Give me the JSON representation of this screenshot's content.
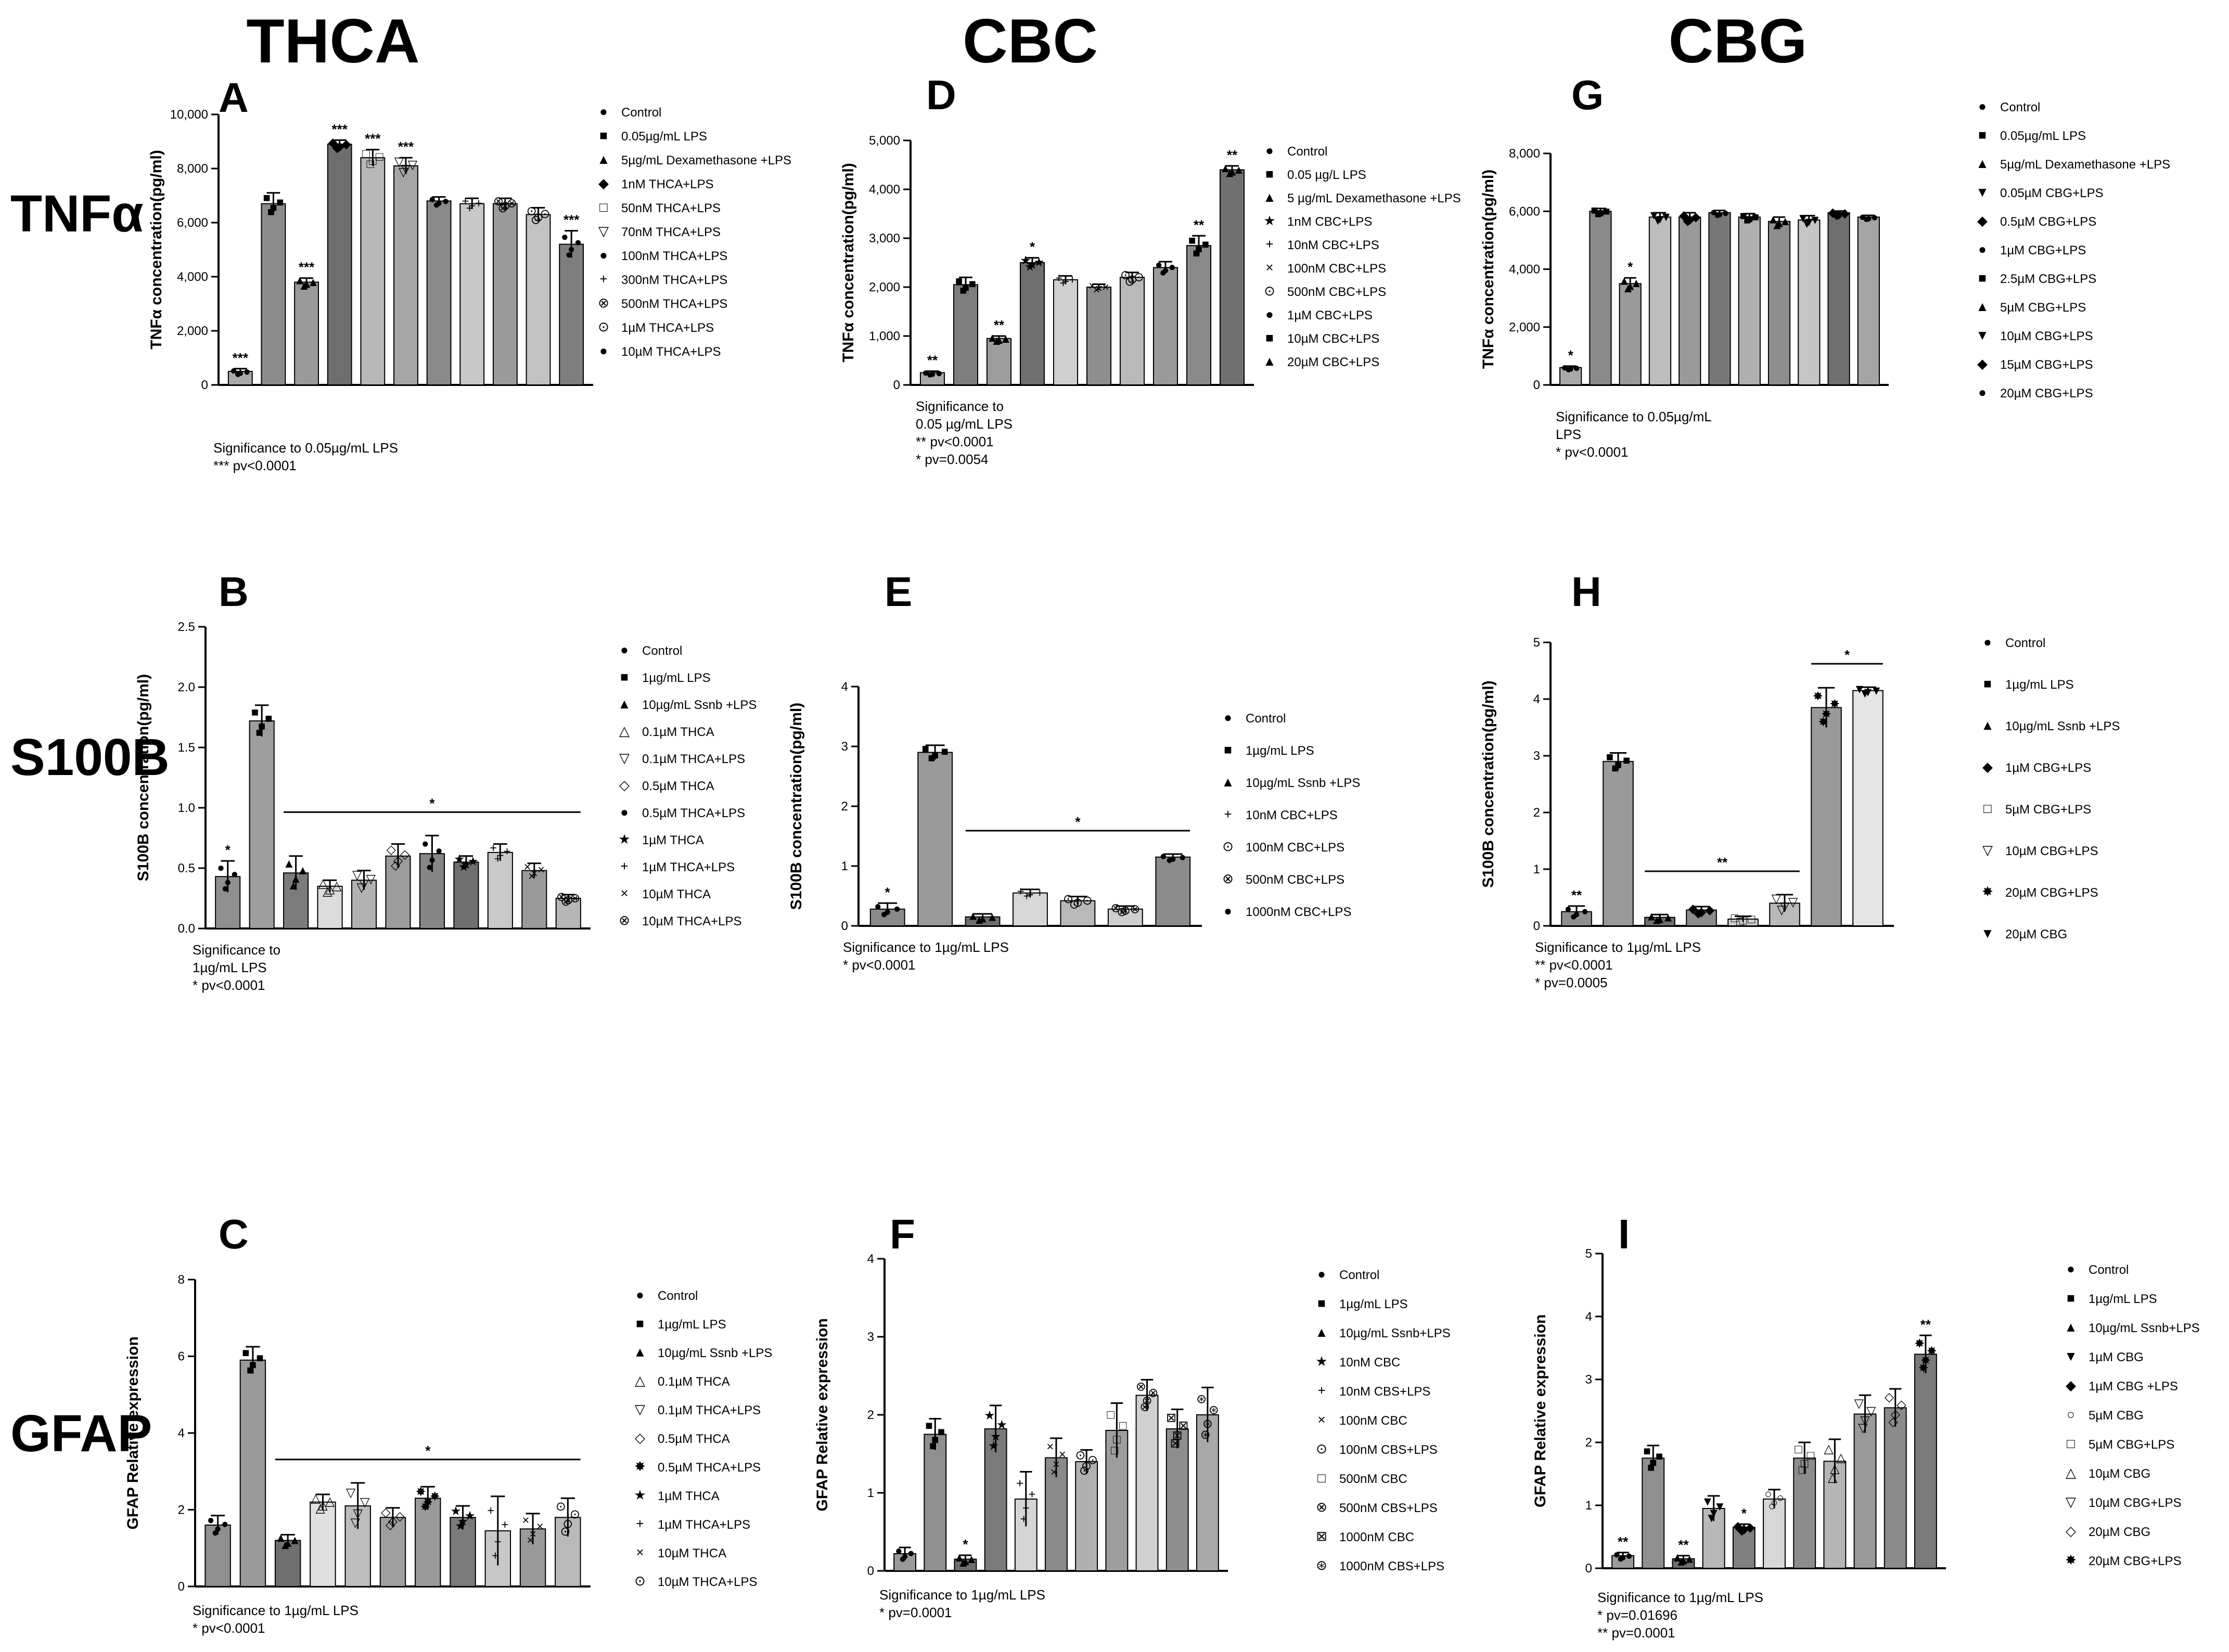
{
  "figure": {
    "columns": [
      "THCA",
      "CBC",
      "CBG"
    ],
    "rows": [
      "TNFα",
      "S100B",
      "GFAP"
    ]
  },
  "chart_data": [
    {
      "panel": "A",
      "type": "bar",
      "ylabel": "TNFα concentration(pg/ml)",
      "ylim": [
        0,
        10000
      ],
      "yticks": [
        "0",
        "2,000",
        "4,000",
        "6,000",
        "8,000",
        "10,000"
      ],
      "categories": [
        "Control",
        "0.05µg/mL LPS",
        "5µg/mL Dexamethasone +LPS",
        "1nM THCA+LPS",
        "50nM THCA+LPS",
        "70nM THCA+LPS",
        "100nM THCA+LPS",
        "300nM THCA+LPS",
        "500nM THCA+LPS",
        "1µM THCA+LPS",
        "10µM THCA+LPS"
      ],
      "values": [
        500,
        6700,
        3800,
        8900,
        8400,
        8100,
        6800,
        6700,
        6700,
        6300,
        5200
      ],
      "errors": [
        100,
        400,
        150,
        150,
        300,
        300,
        150,
        200,
        200,
        250,
        500
      ],
      "markers": [
        "●",
        "■",
        "▲",
        "◆",
        "□",
        "▽",
        "●",
        "+",
        "⊗",
        "⊙",
        "●"
      ],
      "stars": [
        "***",
        "",
        "***",
        "***",
        "***",
        "***",
        "",
        "",
        "",
        "",
        "***"
      ],
      "significance": [
        "Significance to 0.05µg/mL LPS",
        "*** pv<0.0001"
      ]
    },
    {
      "panel": "D",
      "type": "bar",
      "ylabel": "TNFα concentration(pg/ml)",
      "ylim": [
        0,
        5000
      ],
      "yticks": [
        "0",
        "1,000",
        "2,000",
        "3,000",
        "4,000",
        "5,000"
      ],
      "categories": [
        "Control",
        "0.05 µg/L LPS",
        "5 µg/mL Dexamethasone +LPS",
        "1nM CBC+LPS",
        "10nM CBC+LPS",
        "100nM CBC+LPS",
        "500nM CBC+LPS",
        "1µM CBC+LPS",
        "10µM CBC+LPS",
        "20µM CBC+LPS"
      ],
      "values": [
        250,
        2050,
        950,
        2500,
        2150,
        2000,
        2200,
        2400,
        2850,
        4400
      ],
      "errors": [
        30,
        150,
        50,
        100,
        80,
        60,
        100,
        120,
        200,
        80
      ],
      "markers": [
        "●",
        "■",
        "▲",
        "★",
        "+",
        "×",
        "⊙",
        "●",
        "■",
        "▲"
      ],
      "stars": [
        "**",
        "",
        "**",
        "*",
        "",
        "",
        "",
        "",
        "**",
        "**"
      ],
      "significance": [
        "Significance to",
        "0.05 µg/mL LPS",
        "** pv<0.0001",
        "* pv=0.0054"
      ]
    },
    {
      "panel": "G",
      "type": "bar",
      "ylabel": "TNFα concentration(pg/ml)",
      "ylim": [
        0,
        8000
      ],
      "yticks": [
        "0",
        "2,000",
        "4,000",
        "6,000",
        "8,000"
      ],
      "categories": [
        "Control",
        "0.05µg/mL LPS",
        "5µg/mL Dexamethasone +LPS",
        "0.05µM CBG+LPS",
        "0.5µM CBG+LPS",
        "1µM CBG+LPS",
        "2.5µM CBG+LPS",
        "5µM CBG+LPS",
        "10µM CBG+LPS",
        "15µM CBG+LPS",
        "20µM CBG+LPS"
      ],
      "values": [
        600,
        6000,
        3500,
        5800,
        5800,
        5950,
        5800,
        5650,
        5700,
        5950,
        5800
      ],
      "errors": [
        50,
        100,
        200,
        150,
        150,
        80,
        120,
        150,
        150,
        60,
        60
      ],
      "markers": [
        "●",
        "■",
        "▲",
        "▼",
        "◆",
        "●",
        "■",
        "▲",
        "▼",
        "◆",
        "●"
      ],
      "stars": [
        "*",
        "",
        "*",
        "",
        "",
        "",
        "",
        "",
        "",
        "",
        ""
      ],
      "significance": [
        "Significance to 0.05µg/mL",
        "LPS",
        "* pv<0.0001"
      ]
    },
    {
      "panel": "B",
      "type": "bar",
      "ylabel": "S100B concentration(pg/ml)",
      "ylim": [
        0,
        2.5
      ],
      "yticks": [
        "0.0",
        "0.5",
        "1.0",
        "1.5",
        "2.0",
        "2.5"
      ],
      "categories": [
        "Control",
        "1µg/mL LPS",
        "10µg/mL Ssnb +LPS",
        "0.1µM THCA",
        "0.1µM THCA+LPS",
        "0.5µM THCA",
        "0.5µM THCA+LPS",
        "1µM THCA",
        "1µM THCA+LPS",
        "10µM THCA",
        "10µM THCA+LPS"
      ],
      "values": [
        0.43,
        1.72,
        0.46,
        0.35,
        0.4,
        0.6,
        0.62,
        0.55,
        0.63,
        0.48,
        0.25
      ],
      "errors": [
        0.13,
        0.13,
        0.14,
        0.05,
        0.08,
        0.1,
        0.15,
        0.05,
        0.07,
        0.06,
        0.03
      ],
      "markers": [
        "●",
        "■",
        "▲",
        "△",
        "▽",
        "◇",
        "●",
        "★",
        "+",
        "×",
        "⊗"
      ],
      "stars": [
        "*",
        "",
        "",
        "",
        "",
        "",
        "",
        "",
        "",
        "",
        ""
      ],
      "bracket": {
        "from": 2,
        "to": 10,
        "label": "*"
      },
      "significance": [
        "Significance to",
        "1µg/mL LPS",
        "* pv<0.0001"
      ]
    },
    {
      "panel": "E",
      "type": "bar",
      "ylabel": "S100B concentration(pg/ml)",
      "ylim": [
        0,
        4
      ],
      "yticks": [
        "0",
        "1",
        "2",
        "3",
        "4"
      ],
      "categories": [
        "Control",
        "1µg/mL LPS",
        "10µg/mL Ssnb +LPS",
        "10nM CBC+LPS",
        "100nM CBC+LPS",
        "500nM CBC+LPS",
        "1000nM CBC+LPS"
      ],
      "values": [
        0.28,
        2.9,
        0.15,
        0.55,
        0.42,
        0.28,
        1.15
      ],
      "errors": [
        0.1,
        0.12,
        0.05,
        0.06,
        0.07,
        0.05,
        0.05
      ],
      "markers": [
        "●",
        "■",
        "▲",
        "+",
        "⊙",
        "⊗",
        "●"
      ],
      "stars": [
        "*",
        "",
        "",
        "",
        "",
        "",
        ""
      ],
      "bracket": {
        "from": 2,
        "to": 6,
        "label": "*"
      },
      "significance": [
        "Significance to 1µg/mL LPS",
        "* pv<0.0001"
      ]
    },
    {
      "panel": "H",
      "type": "bar",
      "ylabel": "S100B concentration(pg/ml)",
      "ylim": [
        0,
        5
      ],
      "yticks": [
        "0",
        "1",
        "2",
        "3",
        "4",
        "5"
      ],
      "categories": [
        "Control",
        "1µg/mL LPS",
        "10µg/mL Ssnb +LPS",
        "1µM CBG+LPS",
        "5µM CBG+LPS",
        "10µM CBG+LPS",
        "20µM CBG+LPS",
        "20µM CBG"
      ],
      "values": [
        0.25,
        2.9,
        0.15,
        0.28,
        0.12,
        0.4,
        3.85,
        4.15
      ],
      "errors": [
        0.1,
        0.15,
        0.05,
        0.06,
        0.05,
        0.15,
        0.35,
        0.06
      ],
      "markers": [
        "●",
        "■",
        "▲",
        "◆",
        "□",
        "▽",
        "✸",
        "▼"
      ],
      "stars": [
        "**",
        "",
        "",
        "",
        "",
        "",
        "",
        ""
      ],
      "bracket": {
        "from": 2,
        "to": 5,
        "label": "**"
      },
      "bracket2": {
        "from": 6,
        "to": 7,
        "label": "*"
      },
      "significance": [
        "Significance to 1µg/mL LPS",
        "** pv<0.0001",
        "* pv=0.0005"
      ]
    },
    {
      "panel": "C",
      "type": "bar",
      "ylabel": "GFAP  Relative expression",
      "ylim": [
        0,
        8
      ],
      "yticks": [
        "0",
        "2",
        "4",
        "6",
        "8"
      ],
      "categories": [
        "Control",
        "1µg/mL LPS",
        "10µg/mL Ssnb +LPS",
        "0.1µM THCA",
        "0.1µM THCA+LPS",
        "0.5µM THCA",
        "0.5µM THCA+LPS",
        "1µM THCA",
        "1µM THCA+LPS",
        "10µM THCA",
        "10µM THCA+LPS"
      ],
      "values": [
        1.6,
        5.9,
        1.2,
        2.2,
        2.1,
        1.8,
        2.3,
        1.8,
        1.45,
        1.5,
        1.8
      ],
      "errors": [
        0.25,
        0.35,
        0.15,
        0.2,
        0.6,
        0.25,
        0.3,
        0.3,
        0.9,
        0.4,
        0.5
      ],
      "markers": [
        "●",
        "■",
        "▲",
        "△",
        "▽",
        "◇",
        "✸",
        "★",
        "+",
        "×",
        "⊙"
      ],
      "stars": [
        "",
        "",
        "",
        "",
        "",
        "",
        "",
        "",
        "",
        "",
        ""
      ],
      "bracket": {
        "from": 2,
        "to": 10,
        "label": "*"
      },
      "significance": [
        "Significance to 1µg/mL LPS",
        "* pv<0.0001"
      ]
    },
    {
      "panel": "F",
      "type": "bar",
      "ylabel": "GFAP  Relative expression",
      "ylim": [
        0,
        4
      ],
      "yticks": [
        "0",
        "1",
        "2",
        "3",
        "4"
      ],
      "categories": [
        "Control",
        "1µg/mL LPS",
        "10µg/mL Ssnb+LPS",
        "10nM CBC",
        "10nM CBS+LPS",
        "100nM CBC",
        "100nM CBS+LPS",
        "500nM CBC",
        "500nM CBS+LPS",
        "1000nM CBC",
        "1000nM CBS+LPS"
      ],
      "values": [
        0.22,
        1.75,
        0.15,
        1.82,
        0.92,
        1.45,
        1.4,
        1.8,
        2.25,
        1.82,
        2.0
      ],
      "errors": [
        0.08,
        0.2,
        0.05,
        0.3,
        0.35,
        0.25,
        0.15,
        0.35,
        0.2,
        0.25,
        0.35
      ],
      "markers": [
        "●",
        "■",
        "▲",
        "★",
        "+",
        "×",
        "⊙",
        "□",
        "⊗",
        "⊠",
        "⊛"
      ],
      "stars": [
        "",
        "",
        "*",
        "",
        "",
        "",
        "",
        "",
        "",
        "",
        ""
      ],
      "significance": [
        "Significance to 1µg/mL LPS",
        "* pv=0.0001"
      ]
    },
    {
      "panel": "I",
      "type": "bar",
      "ylabel": "GFAP  Relative expression",
      "ylim": [
        0,
        5
      ],
      "yticks": [
        "0",
        "1",
        "2",
        "3",
        "4",
        "5"
      ],
      "categories": [
        "Control",
        "1µg/mL LPS",
        "10µg/mL Ssnb+LPS",
        "1µM CBG",
        "1µM CBG +LPS",
        "5µM CBG",
        "5µM CBG+LPS",
        "10µM CBG",
        "10µM CBG+LPS",
        "20µM CBG",
        "20µM CBG+LPS"
      ],
      "values": [
        0.2,
        1.75,
        0.15,
        0.95,
        0.65,
        1.1,
        1.75,
        1.7,
        2.45,
        2.55,
        3.4
      ],
      "errors": [
        0.05,
        0.2,
        0.05,
        0.2,
        0.05,
        0.15,
        0.25,
        0.35,
        0.3,
        0.3,
        0.3
      ],
      "markers": [
        "●",
        "■",
        "▲",
        "▼",
        "◆",
        "○",
        "□",
        "△",
        "▽",
        "◇",
        "✸"
      ],
      "stars": [
        "**",
        "",
        "**",
        "",
        "*",
        "",
        "",
        "",
        "",
        "",
        "**"
      ],
      "significance": [
        "Significance to 1µg/mL LPS",
        "* pv=0.01696",
        "** pv=0.0001"
      ]
    }
  ]
}
